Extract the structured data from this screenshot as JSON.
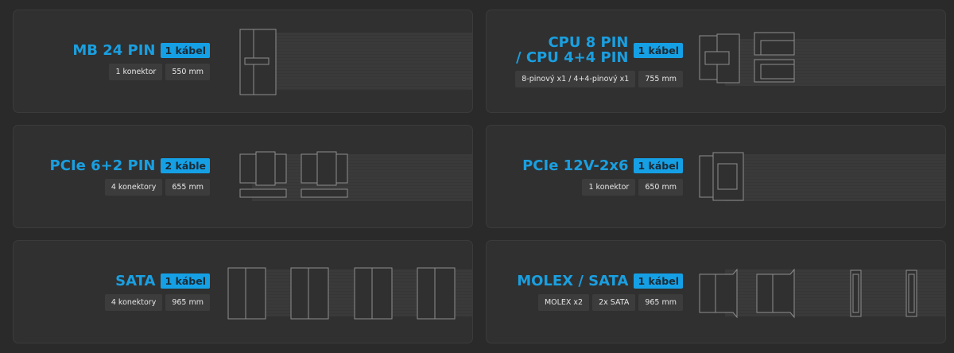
{
  "cards": [
    {
      "title": "MB 24 PIN",
      "badge": "1 kábel",
      "chips": [
        "1 konektor",
        "550 mm"
      ]
    },
    {
      "title_line1": "CPU 8 PIN",
      "title_line2": "/ CPU 4+4 PIN",
      "badge": "1 kábel",
      "chips": [
        "8-pinový x1 / 4+4-pinový x1",
        "755 mm"
      ]
    },
    {
      "title": "PCIe 6+2 PIN",
      "badge": "2 káble",
      "chips": [
        "4 konektory",
        "655 mm"
      ]
    },
    {
      "title": "PCIe 12V-2x6",
      "badge": "1 kábel",
      "chips": [
        "1 konektor",
        "650 mm"
      ]
    },
    {
      "title": "SATA",
      "badge": "1 kábel",
      "chips": [
        "4 konektory",
        "965 mm"
      ]
    },
    {
      "title": "MOLEX / SATA",
      "badge": "1 kábel",
      "chips": [
        "MOLEX x2",
        "2x SATA",
        "965 mm"
      ]
    }
  ],
  "colors": {
    "accent": "#15a0e6",
    "background": "#2a2a2a",
    "card": "#303030"
  }
}
